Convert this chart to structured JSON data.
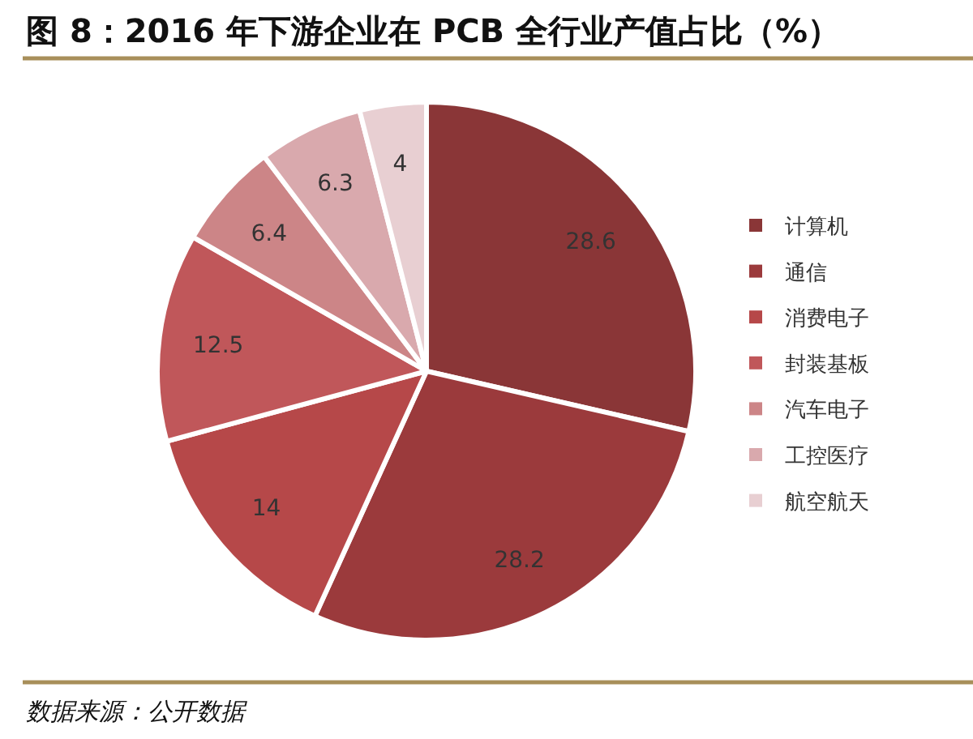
{
  "chart_data": {
    "type": "pie",
    "title": "图 8：2016 年下游企业在 PCB 全行业产值占比（%）",
    "categories": [
      "计算机",
      "通信",
      "消费电子",
      "封装基板",
      "汽车电子",
      "工控医疗",
      "航空航天"
    ],
    "values": [
      28.6,
      28.2,
      14,
      12.5,
      6.4,
      6.3,
      4
    ],
    "colors": [
      "#8a3637",
      "#9b3a3c",
      "#b64849",
      "#c0575a",
      "#cc8587",
      "#d9a9ad",
      "#e8cfd2"
    ],
    "data_labels": true,
    "legend": "right",
    "annotations": [
      "数据来源：公开数据"
    ]
  }
}
